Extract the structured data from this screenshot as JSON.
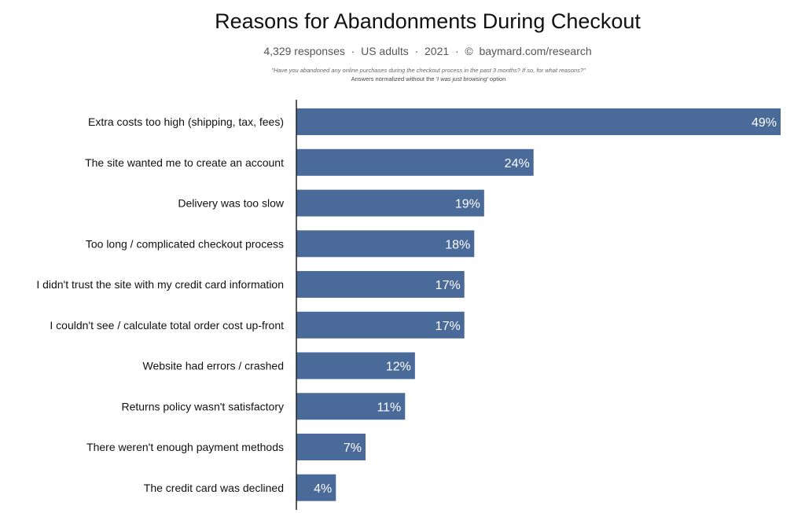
{
  "header": {
    "title": "Reasons for Abandonments During Checkout",
    "subtitle": "4,329 responses  ·  US adults  ·  2021  ·  ©  baymard.com/research",
    "question": "\"Have you abandoned any online purchases during the checkout process in the past 3 months? If so, for what reasons?\"",
    "note_prefix": "Answers normalized without the ",
    "note_emphasis": "'I was just browsing'",
    "note_suffix": " option"
  },
  "colors": {
    "bar": "#4a6a9a",
    "axis": "#222222",
    "value_text": "#ffffff"
  },
  "chart_data": {
    "type": "bar",
    "orientation": "horizontal",
    "title": "Reasons for Abandonments During Checkout",
    "xlabel": "",
    "ylabel": "",
    "xlim": [
      0,
      49
    ],
    "grid": false,
    "legend": "none",
    "categories": [
      "Extra costs too high (shipping, tax, fees)",
      "The site wanted me to create an account",
      "Delivery was too slow",
      "Too long / complicated checkout process",
      "I didn't trust the site with my credit card information",
      "I couldn't see / calculate total order cost up-front",
      "Website had errors / crashed",
      "Returns policy wasn't satisfactory",
      "There weren't enough payment methods",
      "The credit card was declined"
    ],
    "values": [
      49,
      24,
      19,
      18,
      17,
      17,
      12,
      11,
      7,
      4
    ],
    "value_labels": [
      "49%",
      "24%",
      "19%",
      "18%",
      "17%",
      "17%",
      "12%",
      "11%",
      "7%",
      "4%"
    ]
  }
}
